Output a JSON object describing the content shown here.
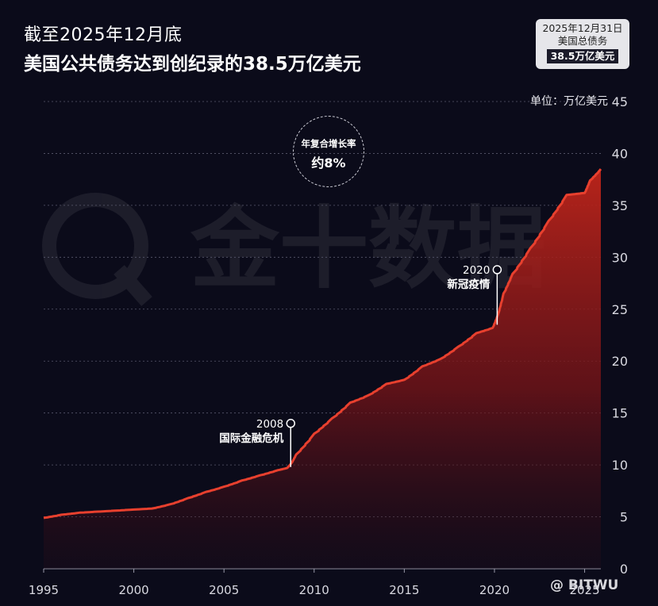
{
  "header": {
    "title_line1": "截至2025年12月底",
    "title_line2": "美国公共债务达到创纪录的38.5万亿美元"
  },
  "info_box": {
    "line1": "2025年12月31日",
    "line2": "美国总债务",
    "value": "38.5万亿美元"
  },
  "unit_label": "单位：万亿美元",
  "cagr": {
    "label": "年复合增长率",
    "value": "约8%"
  },
  "watermark": "@ BITWU",
  "background_logo_text": "金十数据",
  "colors": {
    "background": "#0b0b1a",
    "line": "#e8402e",
    "area_top": "#c0251a",
    "grid": "#5a5a6e"
  },
  "chart_data": {
    "type": "area",
    "title": "美国公共债务达到创纪录的38.5万亿美元",
    "xlabel": "",
    "ylabel": "万亿美元",
    "xlim": [
      1995,
      2025.9
    ],
    "ylim": [
      0,
      45
    ],
    "x_ticks": [
      "1995",
      "2000",
      "2005",
      "2010",
      "2015",
      "2020",
      "2025"
    ],
    "y_ticks": [
      "0",
      "5",
      "10",
      "15",
      "20",
      "25",
      "30",
      "35",
      "40",
      "45"
    ],
    "grid": true,
    "series": [
      {
        "x": [
          1995,
          1996,
          1997,
          1998,
          1999,
          2000,
          2001,
          2002,
          2003,
          2004,
          2005,
          2006,
          2007,
          2008,
          2008.5,
          2008.75,
          2009,
          2010,
          2011,
          2012,
          2013,
          2014,
          2015,
          2016,
          2017,
          2018,
          2019,
          2019.9,
          2020.2,
          2020.5,
          2021,
          2022,
          2023,
          2024,
          2025,
          2025.3,
          2025.9
        ],
        "values": [
          4.9,
          5.2,
          5.4,
          5.5,
          5.6,
          5.7,
          5.8,
          6.2,
          6.8,
          7.4,
          7.9,
          8.5,
          9.0,
          9.5,
          9.7,
          10.2,
          11.0,
          13.0,
          14.5,
          16.0,
          16.7,
          17.8,
          18.2,
          19.5,
          20.2,
          21.4,
          22.7,
          23.2,
          24.5,
          26.5,
          28.4,
          30.9,
          33.5,
          36.0,
          36.2,
          37.4,
          38.5
        ]
      }
    ],
    "annotations": [
      {
        "year": "2008",
        "label": "国际金融危机",
        "x": 2008.7,
        "y": 9.8,
        "marker_y": 14.0
      },
      {
        "year": "2020",
        "label": "新冠疫情",
        "x": 2020.15,
        "y": 23.5,
        "marker_y": 28.8
      }
    ]
  }
}
